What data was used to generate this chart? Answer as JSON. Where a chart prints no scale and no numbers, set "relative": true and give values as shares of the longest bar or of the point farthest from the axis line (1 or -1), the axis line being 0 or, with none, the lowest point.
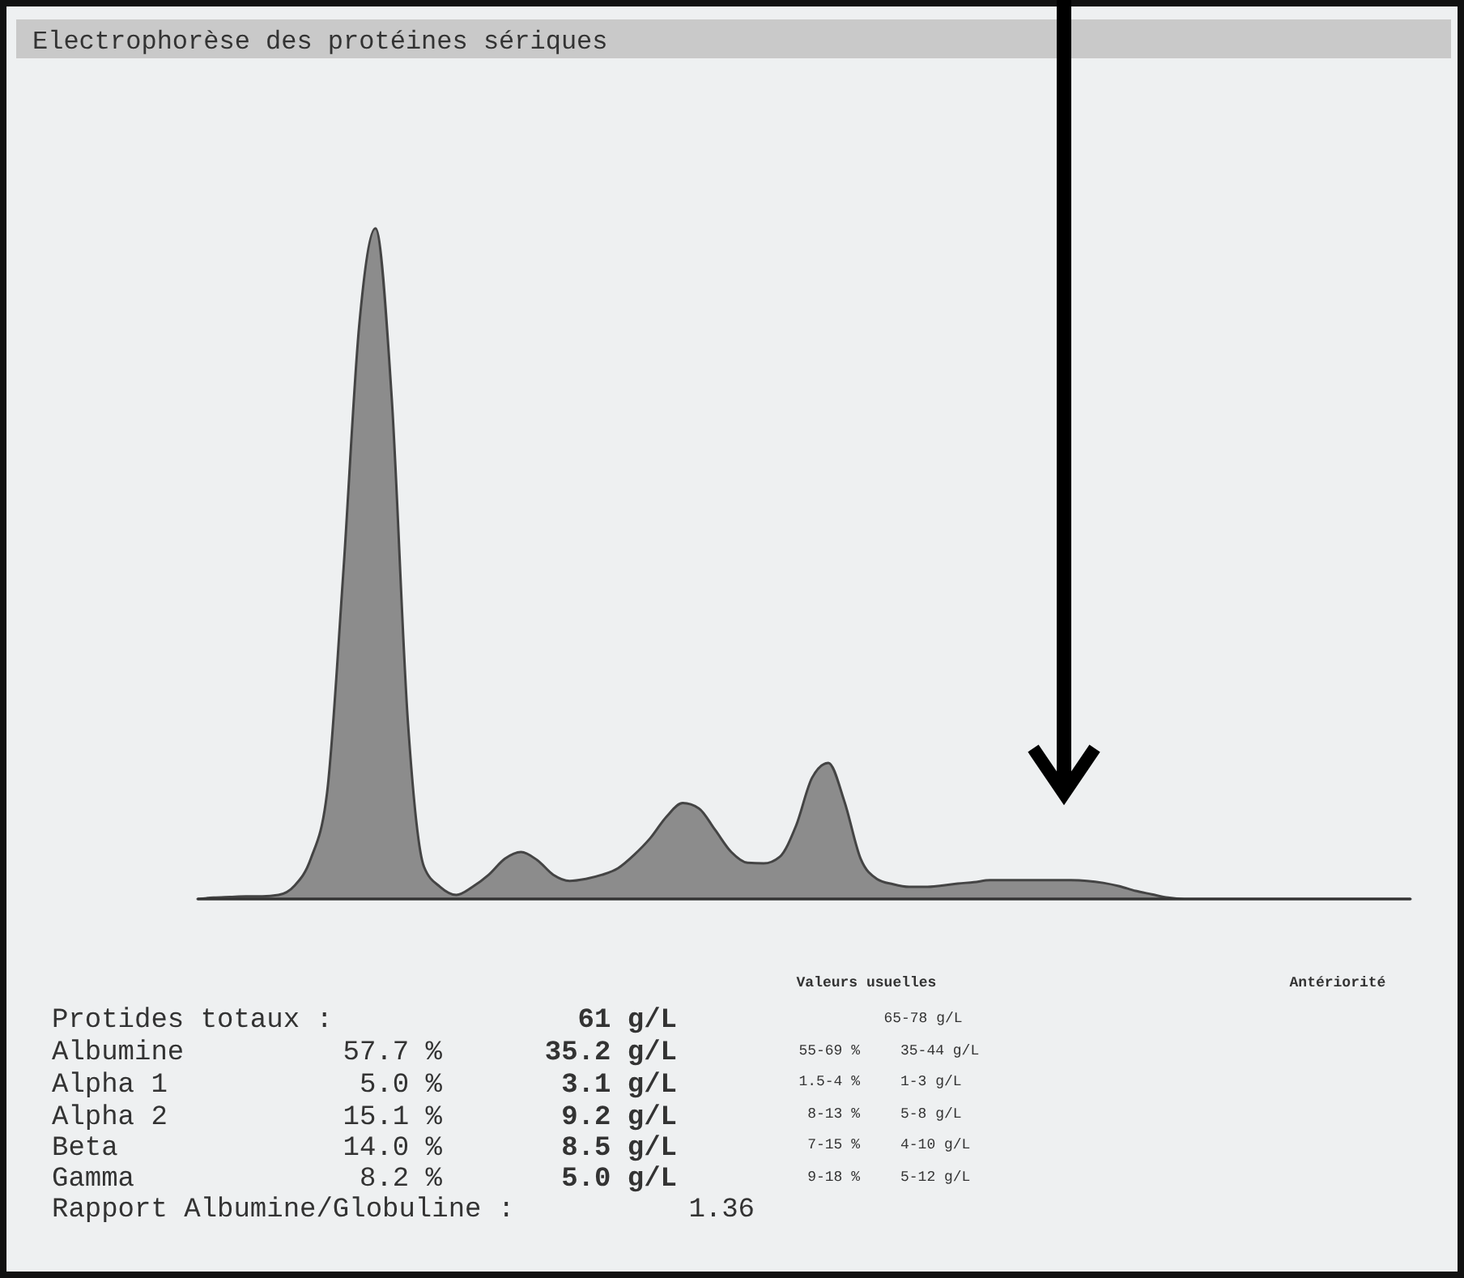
{
  "chart_data": {
    "type": "area",
    "title": "Electrophorèse des protéines sériques",
    "relative": true,
    "color": "#8c8c8c",
    "categories": [
      null,
      null,
      null,
      null,
      null,
      null,
      null,
      null,
      null,
      null,
      null,
      null,
      null,
      null,
      null,
      null,
      null,
      null,
      null,
      null,
      null,
      null,
      null,
      null,
      null,
      null,
      null,
      null,
      null,
      null,
      null,
      null,
      null,
      null,
      null,
      null,
      null,
      null,
      null,
      null,
      null,
      null,
      null,
      null,
      null,
      null,
      null,
      null,
      null,
      null,
      null,
      null,
      null,
      null,
      null,
      null,
      null,
      null,
      null,
      null,
      null,
      null,
      null,
      null,
      null,
      null,
      null,
      null,
      null,
      null,
      null,
      null,
      null,
      null,
      null,
      null
    ],
    "values": [
      0,
      0.002,
      0.003,
      0.004,
      0.004,
      0.006,
      0.02,
      0.06,
      0.157,
      0.483,
      0.857,
      1,
      0.749,
      0.266,
      0.048,
      0.018,
      0.006,
      0.018,
      0.036,
      0.06,
      0.07,
      0.058,
      0.036,
      0.027,
      0.03,
      0.036,
      0.046,
      0.066,
      0.091,
      0.123,
      0.143,
      0.135,
      0.103,
      0.07,
      0.054,
      0.053,
      0.063,
      0.109,
      0.181,
      0.203,
      0.145,
      0.06,
      0.03,
      0.022,
      0.018,
      0.018,
      0.02,
      0.023,
      0.025,
      0.028,
      0.028,
      0.028,
      0.028,
      0.028,
      0.028,
      0.027,
      0.024,
      0.019,
      0.012,
      0.007,
      0.002,
      0,
      0,
      0,
      0,
      0,
      0,
      0,
      0,
      0,
      0,
      0,
      0,
      0,
      0,
      0
    ],
    "annotations": [
      "Protides totaux :",
      "61 g/L",
      "Albumine",
      "57.7 %",
      "35.2 g/L",
      "Alpha 1",
      "5.0 %",
      "3.1 g/L",
      "Alpha 2",
      "15.1 %",
      "9.2 g/L",
      "Beta",
      "14.0 %",
      "8.5 g/L",
      "Gamma",
      "8.2 %",
      "5.0 g/L",
      "Rapport Albumine/Globuline :",
      "1.36",
      "Valeurs usuelles",
      "65-78 g/L",
      "55-69 %",
      "35-44 g/L",
      "1.5-4 %",
      "1-3 g/L",
      "8-13 %",
      "5-8 g/L",
      "7-15 %",
      "4-10 g/L",
      "9-18 %",
      "5-12 g/L",
      "Antériorité"
    ]
  }
}
